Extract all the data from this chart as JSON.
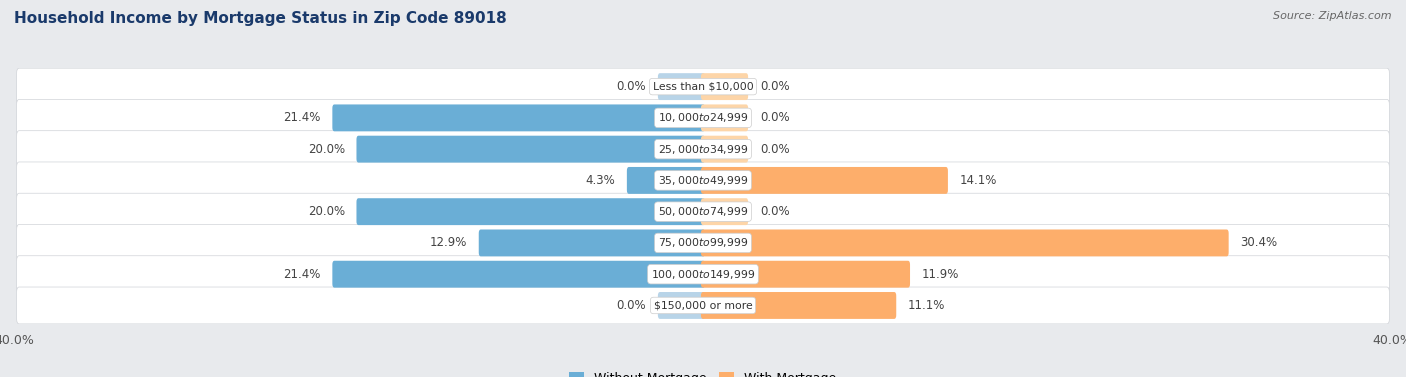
{
  "title": "Household Income by Mortgage Status in Zip Code 89018",
  "source": "Source: ZipAtlas.com",
  "categories": [
    "Less than $10,000",
    "$10,000 to $24,999",
    "$25,000 to $34,999",
    "$35,000 to $49,999",
    "$50,000 to $74,999",
    "$75,000 to $99,999",
    "$100,000 to $149,999",
    "$150,000 or more"
  ],
  "without_mortgage": [
    0.0,
    21.4,
    20.0,
    4.3,
    20.0,
    12.9,
    21.4,
    0.0
  ],
  "with_mortgage": [
    0.0,
    0.0,
    0.0,
    14.1,
    0.0,
    30.4,
    11.9,
    11.1
  ],
  "color_without": "#6aaed6",
  "color_with": "#fdae6b",
  "color_without_light": "#b8d4e8",
  "color_with_light": "#fdd5a8",
  "axis_limit": 40.0,
  "bg_color": "#e8eaed",
  "row_bg": "#f0f1f3",
  "row_bg_alt": "#e8e9ec"
}
